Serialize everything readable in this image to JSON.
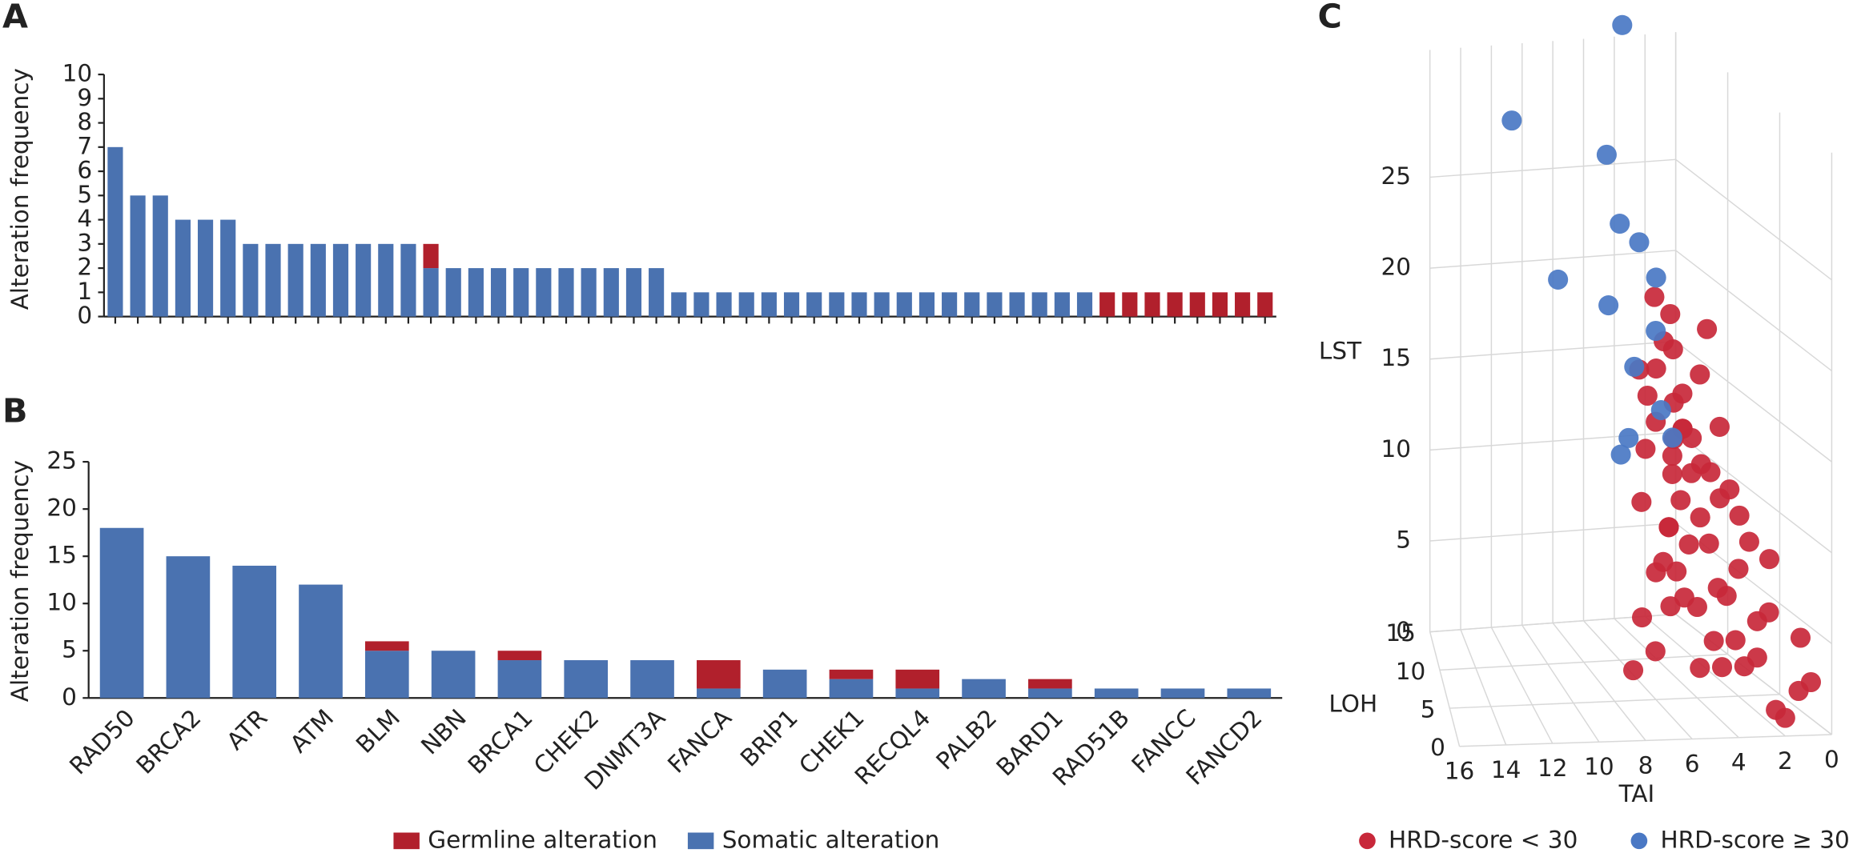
{
  "chart_data": [
    {
      "type": "bar",
      "stacked": true,
      "panel_label": "A",
      "ylabel": "Alteration frequency",
      "categories": [
        null,
        null,
        null,
        null,
        null,
        null,
        null,
        null,
        null,
        null,
        null,
        null,
        null,
        null,
        null,
        null,
        null,
        null,
        null,
        null,
        null,
        null,
        null,
        null,
        null,
        null,
        null,
        null,
        null,
        null,
        null,
        null,
        null,
        null,
        null,
        null,
        null,
        null,
        null,
        null,
        null,
        null,
        null,
        null,
        null,
        null,
        null,
        null,
        null,
        null,
        null,
        null
      ],
      "series": [
        {
          "name": "Somatic alteration",
          "color": "#4a72b0",
          "values": [
            7,
            5,
            5,
            4,
            4,
            4,
            3,
            3,
            3,
            3,
            3,
            3,
            3,
            3,
            2,
            2,
            2,
            2,
            2,
            2,
            2,
            2,
            2,
            2,
            2,
            1,
            1,
            1,
            1,
            1,
            1,
            1,
            1,
            1,
            1,
            1,
            1,
            1,
            1,
            1,
            1,
            1,
            1,
            1,
            0,
            0,
            0,
            0,
            0,
            0,
            0,
            0
          ]
        },
        {
          "name": "Germline alteration",
          "color": "#b1202c",
          "values": [
            0,
            0,
            0,
            0,
            0,
            0,
            0,
            0,
            0,
            0,
            0,
            0,
            0,
            0,
            1,
            0,
            0,
            0,
            0,
            0,
            0,
            0,
            0,
            0,
            0,
            0,
            0,
            0,
            0,
            0,
            0,
            0,
            0,
            0,
            0,
            0,
            0,
            0,
            0,
            0,
            0,
            0,
            0,
            0,
            1,
            1,
            1,
            1,
            1,
            1,
            1,
            1
          ]
        }
      ],
      "ylim": [
        0,
        10
      ],
      "yticks": [
        0,
        1,
        2,
        3,
        4,
        5,
        6,
        7,
        8,
        9,
        10
      ]
    },
    {
      "type": "bar",
      "stacked": true,
      "panel_label": "B",
      "ylabel": "Alteration frequency",
      "categories": [
        "RAD50",
        "BRCA2",
        "ATR",
        "ATM",
        "BLM",
        "NBN",
        "BRCA1",
        "CHEK2",
        "DNMT3A",
        "FANCA",
        "BRIP1",
        "CHEK1",
        "RECQL4",
        "PALB2",
        "BARD1",
        "RAD51B",
        "FANCC",
        "FANCD2"
      ],
      "series": [
        {
          "name": "Somatic alteration",
          "color": "#4a72b0",
          "values": [
            18,
            15,
            14,
            12,
            5,
            5,
            4,
            4,
            4,
            1,
            3,
            2,
            1,
            2,
            1,
            1,
            1,
            1
          ]
        },
        {
          "name": "Germline alteration",
          "color": "#b1202c",
          "values": [
            0,
            0,
            0,
            0,
            1,
            0,
            1,
            0,
            0,
            3,
            0,
            1,
            2,
            0,
            1,
            0,
            0,
            0
          ]
        }
      ],
      "ylim": [
        0,
        25
      ],
      "yticks": [
        0,
        5,
        10,
        15,
        20,
        25
      ],
      "legend": "bottom"
    },
    {
      "type": "scatter3d",
      "panel_label": "C",
      "xlabel": "TAI",
      "ylabel": "LOH",
      "zlabel": "LST",
      "xlim": [
        0,
        16
      ],
      "xticks": [
        0,
        2,
        4,
        6,
        8,
        10,
        12,
        14,
        16
      ],
      "ylim": [
        0,
        15
      ],
      "yticks": [
        0,
        5,
        10,
        15
      ],
      "zlim": [
        0,
        32
      ],
      "zticks": [
        0,
        5,
        10,
        15,
        20,
        25
      ],
      "series": [
        {
          "name": "HRD-score < 30",
          "color": "#c8283a",
          "x": [
            4,
            5,
            3,
            6,
            2,
            4,
            3,
            5,
            1,
            2,
            3,
            4,
            6,
            7,
            2,
            3,
            1,
            0,
            2,
            4,
            5,
            3,
            2,
            1,
            4,
            6,
            3,
            2,
            5,
            1,
            0,
            2,
            3,
            4,
            1,
            2,
            3,
            5,
            4,
            2,
            1,
            3,
            0,
            2,
            4,
            6,
            3,
            1,
            2,
            5,
            3,
            4,
            2,
            1,
            0,
            3,
            7,
            8,
            2,
            4
          ],
          "y": [
            8,
            6,
            10,
            4,
            12,
            7,
            9,
            5,
            11,
            3,
            6,
            8,
            3,
            2,
            7,
            4,
            9,
            12,
            5,
            2,
            6,
            10,
            8,
            4,
            11,
            5,
            3,
            13,
            9,
            6,
            2,
            3,
            7,
            10,
            8,
            1,
            12,
            4,
            5,
            9,
            14,
            2,
            6,
            11,
            3,
            7,
            5,
            1,
            10,
            2,
            8,
            6,
            0,
            7,
            3,
            9,
            4,
            2,
            14,
            12
          ],
          "z": [
            12,
            9,
            14,
            8,
            16,
            10,
            13,
            7,
            15,
            5,
            8,
            11,
            6,
            4,
            10,
            6,
            13,
            17,
            7,
            3,
            9,
            12,
            11,
            5,
            14,
            7,
            4,
            16,
            12,
            8,
            2,
            3,
            9,
            13,
            10,
            1,
            15,
            6,
            5,
            11,
            17,
            3,
            7,
            14,
            4,
            10,
            6,
            2,
            12,
            3,
            11,
            8,
            1,
            9,
            4,
            13,
            5,
            3,
            18,
            15
          ]
        },
        {
          "name": "HRD-score ≥ 30",
          "color": "#4a78c4",
          "x": [
            12,
            5,
            10,
            6,
            5,
            7,
            4,
            6,
            4,
            8,
            7,
            5,
            3,
            4
          ],
          "y": [
            10,
            12,
            8,
            10,
            14,
            9,
            12,
            8,
            10,
            4,
            6,
            7,
            12,
            8
          ],
          "z": [
            30,
            34,
            22,
            24,
            26,
            20,
            22,
            17,
            18,
            14,
            14,
            15,
            20,
            13
          ]
        }
      ]
    }
  ]
}
